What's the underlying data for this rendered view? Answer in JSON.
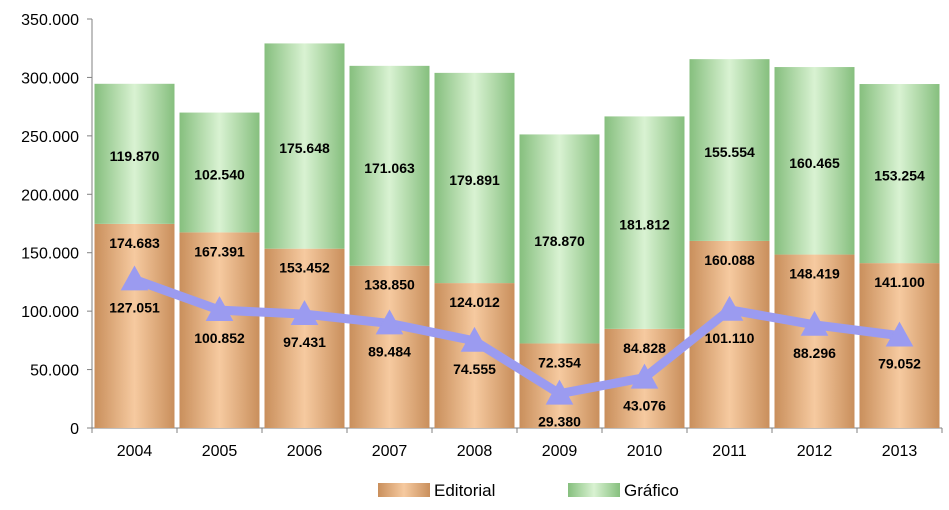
{
  "chart_data": {
    "type": "bar",
    "stacked": true,
    "categories": [
      "2004",
      "2005",
      "2006",
      "2007",
      "2008",
      "2009",
      "2010",
      "2011",
      "2012",
      "2013"
    ],
    "series": [
      {
        "name": "Editorial",
        "type": "bar",
        "color": "#e8b07a",
        "values": [
          174683,
          167391,
          153452,
          138850,
          124012,
          72354,
          84828,
          160088,
          148419,
          141100
        ],
        "labels": [
          "174.683",
          "167.391",
          "153.452",
          "138.850",
          "124.012",
          "72.354",
          "84.828",
          "160.088",
          "148.419",
          "141.100"
        ]
      },
      {
        "name": "Gráfico",
        "type": "bar",
        "color": "#a8d8a0",
        "values": [
          119870,
          102540,
          175648,
          171063,
          179891,
          178870,
          181812,
          155554,
          160465,
          153254
        ],
        "labels": [
          "119.870",
          "102.540",
          "175.648",
          "171.063",
          "179.891",
          "178.870",
          "181.812",
          "155.554",
          "160.465",
          "153.254"
        ]
      },
      {
        "type": "line",
        "color": "#9b9bf0",
        "values": [
          127051,
          100852,
          97431,
          89484,
          74555,
          29380,
          43076,
          101110,
          88296,
          79052
        ],
        "labels": [
          "127.051",
          "100.852",
          "97.431",
          "89.484",
          "74.555",
          "29.380",
          "43.076",
          "101.110",
          "88.296",
          "79.052"
        ]
      }
    ],
    "yticks": [
      "0",
      "50.000",
      "100.000",
      "150.000",
      "200.000",
      "250.000",
      "300.000",
      "350.000"
    ],
    "ylim": [
      0,
      350000
    ],
    "legend_position": "bottom",
    "title": "",
    "xlabel": "",
    "ylabel": ""
  }
}
